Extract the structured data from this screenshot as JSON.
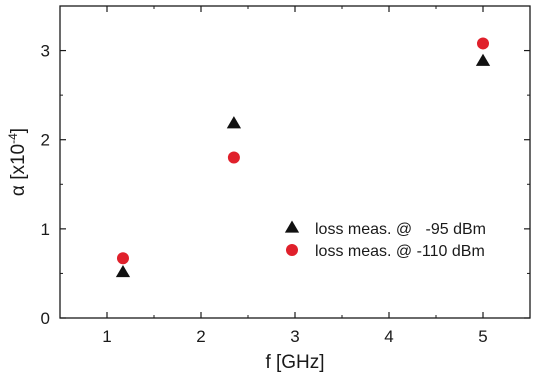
{
  "chart_data": {
    "type": "scatter",
    "xlabel": "f [GHz]",
    "ylabel": {
      "base": "α [x10",
      "exponent": "-4",
      "close": "]"
    },
    "xlim": [
      0.5,
      5.5
    ],
    "ylim": [
      0,
      3.5
    ],
    "xticks": [
      1,
      2,
      3,
      4,
      5
    ],
    "yticks": [
      0,
      1,
      2,
      3
    ],
    "xtick_labels": [
      "1",
      "2",
      "3",
      "4",
      "5"
    ],
    "ytick_labels": [
      "0",
      "1",
      "2",
      "3"
    ],
    "grid": false,
    "legend_position": "right-middle",
    "series": [
      {
        "name": "loss meas. @   -95 dBm",
        "marker": "triangle",
        "color": "#111111",
        "x": [
          1.17,
          2.35,
          5.0
        ],
        "y": [
          0.51,
          2.18,
          2.88
        ]
      },
      {
        "name": "loss meas. @ -110 dBm",
        "marker": "circle",
        "color": "#e0202b",
        "x": [
          1.17,
          2.35,
          5.0
        ],
        "y": [
          0.67,
          1.8,
          3.08
        ]
      }
    ]
  }
}
